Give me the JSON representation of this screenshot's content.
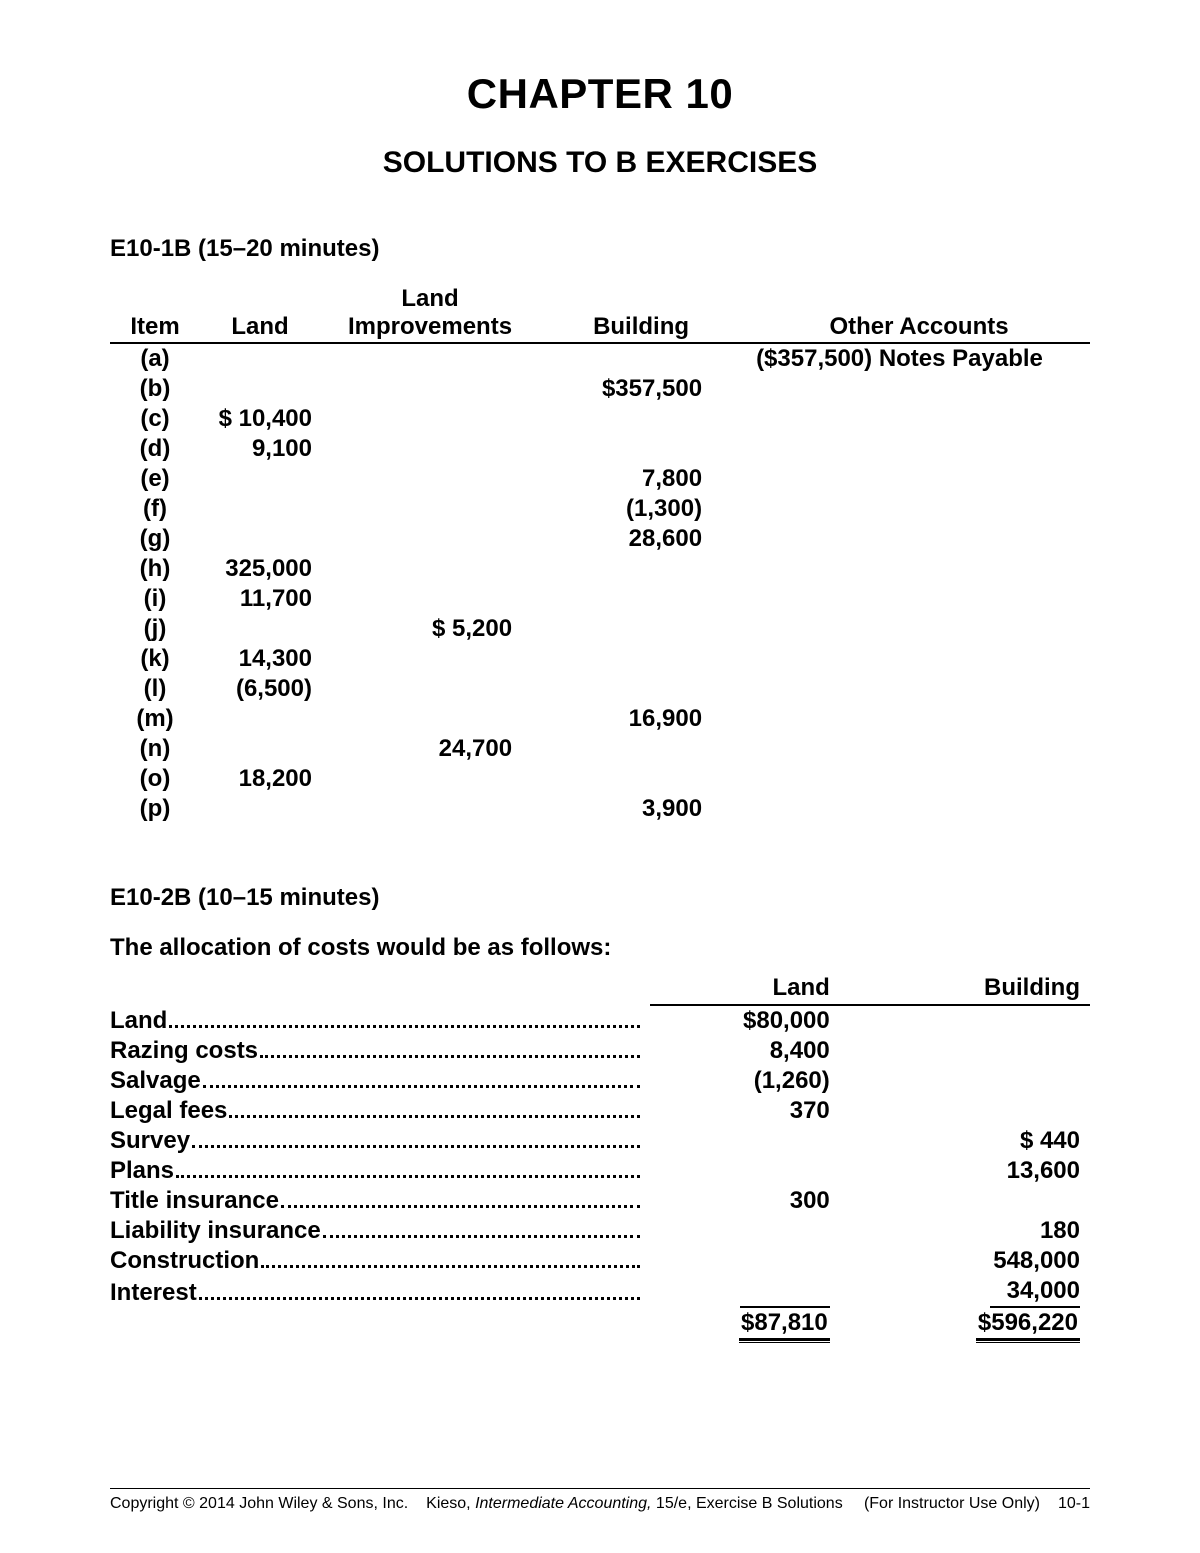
{
  "title": "CHAPTER 10",
  "subtitle": "SOLUTIONS TO B EXERCISES",
  "ex1": {
    "label": "E10-1B (15–20 minutes)",
    "headers": {
      "item": "Item",
      "land": "Land",
      "li1": "Land",
      "li2": "Improvements",
      "bld": "Building",
      "oth": "Other Accounts"
    },
    "rows": [
      {
        "item": "(a)",
        "land": "",
        "li": "",
        "bld": "",
        "oth": "($357,500) Notes Payable"
      },
      {
        "item": "(b)",
        "land": "",
        "li": "",
        "bld": "$357,500",
        "oth": ""
      },
      {
        "item": "(c)",
        "land": "$  10,400",
        "li": "",
        "bld": "",
        "oth": ""
      },
      {
        "item": "(d)",
        "land": "9,100",
        "li": "",
        "bld": "",
        "oth": ""
      },
      {
        "item": "(e)",
        "land": "",
        "li": "",
        "bld": "7,800",
        "oth": ""
      },
      {
        "item": "(f)",
        "land": "",
        "li": "",
        "bld": "(1,300)",
        "oth": ""
      },
      {
        "item": "(g)",
        "land": "",
        "li": "",
        "bld": "28,600",
        "oth": ""
      },
      {
        "item": "(h)",
        "land": "325,000",
        "li": "",
        "bld": "",
        "oth": ""
      },
      {
        "item": "(i)",
        "land": "11,700",
        "li": "",
        "bld": "",
        "oth": ""
      },
      {
        "item": "(j)",
        "land": "",
        "li": "$  5,200",
        "bld": "",
        "oth": ""
      },
      {
        "item": "(k)",
        "land": "14,300",
        "li": "",
        "bld": "",
        "oth": ""
      },
      {
        "item": "(l)",
        "land": "(6,500)",
        "li": "",
        "bld": "",
        "oth": ""
      },
      {
        "item": "(m)",
        "land": "",
        "li": "",
        "bld": "16,900",
        "oth": ""
      },
      {
        "item": "(n)",
        "land": "",
        "li": "24,700",
        "bld": "",
        "oth": ""
      },
      {
        "item": "(o)",
        "land": "18,200",
        "li": "",
        "bld": "",
        "oth": ""
      },
      {
        "item": "(p)",
        "land": "",
        "li": "",
        "bld": "3,900",
        "oth": ""
      }
    ]
  },
  "ex2": {
    "label": "E10-2B (10–15 minutes)",
    "intro": "The allocation of costs would be as follows:",
    "headers": {
      "a": "Land",
      "b": "Building"
    },
    "rows": [
      {
        "label": "Land",
        "a": "$80,000",
        "b": ""
      },
      {
        "label": "Razing costs",
        "a": "8,400",
        "b": ""
      },
      {
        "label": "Salvage",
        "a": "(1,260)",
        "b": ""
      },
      {
        "label": "Legal fees",
        "a": "370",
        "b": ""
      },
      {
        "label": "Survey",
        "a": "",
        "b": "$       440"
      },
      {
        "label": "Plans",
        "a": "",
        "b": "13,600"
      },
      {
        "label": "Title insurance",
        "a": "300",
        "b": ""
      },
      {
        "label": "Liability insurance",
        "a": "",
        "b": "180"
      },
      {
        "label": "Construction",
        "a": "",
        "b": "548,000"
      },
      {
        "label": "Interest",
        "a": "",
        "b": "34,000",
        "aUnderline": true,
        "bUnderline": true
      }
    ],
    "totals": {
      "a": "$87,810",
      "b": "$596,220"
    }
  },
  "footer": {
    "copyright": "Copyright © 2014 John Wiley & Sons, Inc.",
    "bookAuthor": "Kieso, ",
    "bookTitle": "Intermediate Accounting,",
    "bookRest": " 15/e, Exercise B Solutions",
    "note": "(For Instructor Use Only)",
    "page": "10-1"
  }
}
